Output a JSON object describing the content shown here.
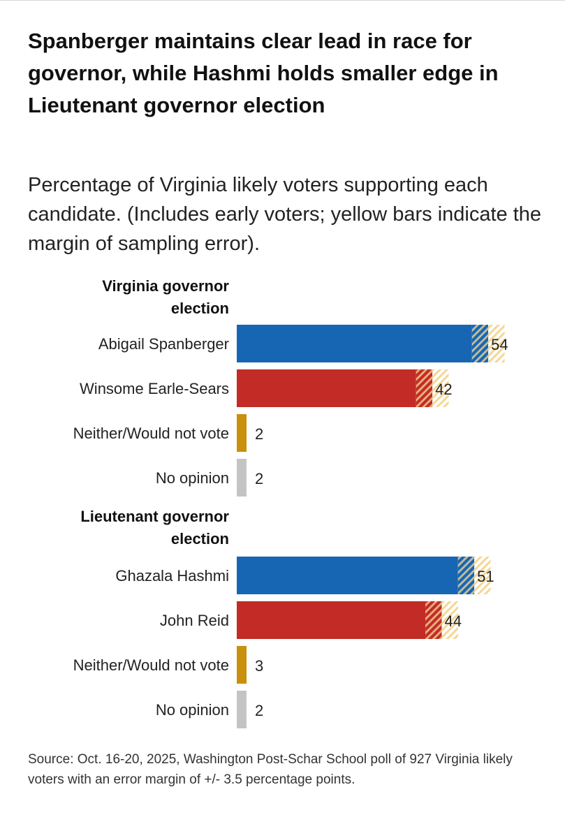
{
  "title": "Spanberger maintains clear lead in race for governor, while Hashmi holds smaller edge in Lieutenant governor election",
  "subtitle": "Percentage of Virginia likely voters supporting each candidate. (Includes early voters; yellow bars indicate the margin of sampling error).",
  "source": "Source: Oct. 16-20, 2025, Washington Post-Schar School poll of 927 Virginia likely voters with an error margin of +/- 3.5 percentage points.",
  "colors": {
    "democrat": "#1766b3",
    "republican": "#c22b26",
    "neither": "#c8900d",
    "no_opinion": "#c4c4c4",
    "error_band": "#f5d694"
  },
  "chart_data": {
    "type": "bar",
    "orientation": "horizontal",
    "unit": "percent",
    "error_margin": 3.5,
    "xlim": [
      0,
      60
    ],
    "groups": [
      {
        "title_lines": [
          "Virginia governor",
          "election"
        ],
        "rows": [
          {
            "label": "Abigail Spanberger",
            "value": 54,
            "color_key": "democrat",
            "show_error": true
          },
          {
            "label": "Winsome Earle-Sears",
            "value": 42,
            "color_key": "republican",
            "show_error": true
          },
          {
            "label": "Neither/Would not vote",
            "value": 2,
            "color_key": "neither",
            "show_error": false
          },
          {
            "label": "No opinion",
            "value": 2,
            "color_key": "no_opinion",
            "show_error": false
          }
        ]
      },
      {
        "title_lines": [
          "Lieutenant governor",
          "election"
        ],
        "rows": [
          {
            "label": "Ghazala Hashmi",
            "value": 51,
            "color_key": "democrat",
            "show_error": true
          },
          {
            "label": "John Reid",
            "value": 44,
            "color_key": "republican",
            "show_error": true
          },
          {
            "label": "Neither/Would not vote",
            "value": 3,
            "color_key": "neither",
            "show_error": false
          },
          {
            "label": "No opinion",
            "value": 2,
            "color_key": "no_opinion",
            "show_error": false
          }
        ]
      }
    ]
  }
}
